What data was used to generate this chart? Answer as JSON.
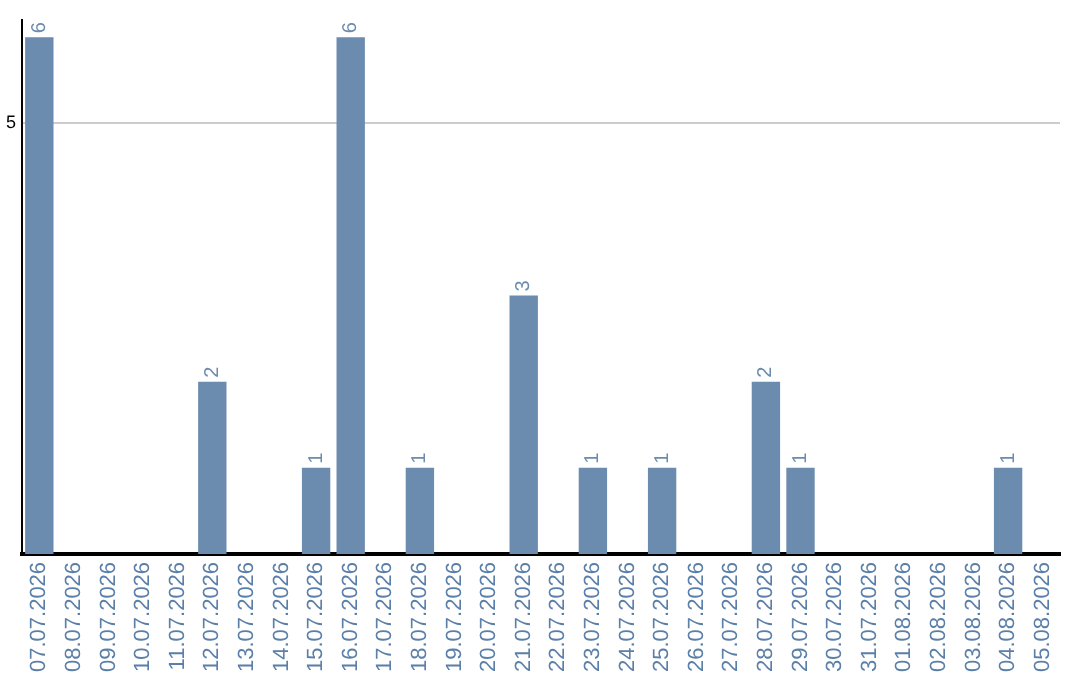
{
  "chart_data": {
    "type": "bar",
    "categories": [
      "07.07.2026",
      "08.07.2026",
      "09.07.2026",
      "10.07.2026",
      "11.07.2026",
      "12.07.2026",
      "13.07.2026",
      "14.07.2026",
      "15.07.2026",
      "16.07.2026",
      "17.07.2026",
      "18.07.2026",
      "19.07.2026",
      "20.07.2026",
      "21.07.2026",
      "22.07.2026",
      "23.07.2026",
      "24.07.2026",
      "25.07.2026",
      "26.07.2026",
      "27.07.2026",
      "28.07.2026",
      "29.07.2026",
      "30.07.2026",
      "31.07.2026",
      "01.08.2026",
      "02.08.2026",
      "03.08.2026",
      "04.08.2026",
      "05.08.2026"
    ],
    "values": [
      6,
      0,
      0,
      0,
      0,
      2,
      0,
      0,
      1,
      6,
      0,
      1,
      0,
      0,
      3,
      0,
      1,
      0,
      1,
      0,
      0,
      2,
      1,
      0,
      0,
      0,
      0,
      0,
      1,
      0
    ],
    "value_labels": [
      "6",
      null,
      null,
      null,
      null,
      "2",
      null,
      null,
      "1",
      "6",
      null,
      "1",
      null,
      null,
      "3",
      null,
      "1",
      null,
      "1",
      null,
      null,
      "2",
      "1",
      null,
      null,
      null,
      null,
      null,
      "1",
      null
    ],
    "color": "#6b8cae",
    "ylim": [
      0,
      6.2
    ],
    "yticks": [
      5
    ],
    "grid": "y",
    "legend": false
  }
}
